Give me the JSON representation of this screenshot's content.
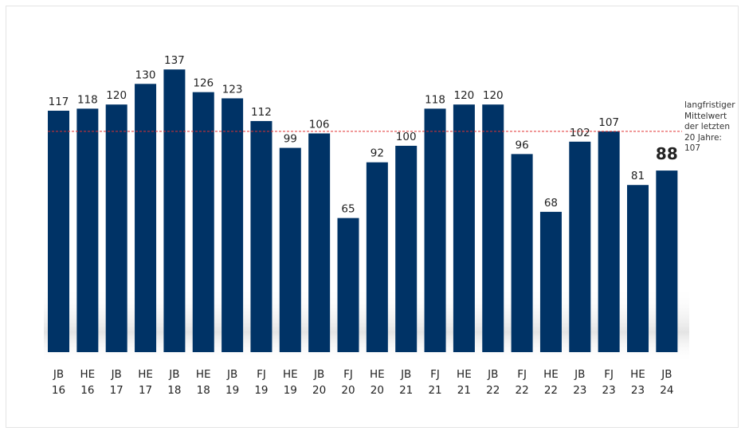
{
  "chart_data": {
    "type": "bar",
    "categories": [
      [
        "JB",
        "16"
      ],
      [
        "HE",
        "16"
      ],
      [
        "JB",
        "17"
      ],
      [
        "HE",
        "17"
      ],
      [
        "JB",
        "18"
      ],
      [
        "HE",
        "18"
      ],
      [
        "JB",
        "19"
      ],
      [
        "FJ",
        "19"
      ],
      [
        "HE",
        "19"
      ],
      [
        "JB",
        "20"
      ],
      [
        "FJ",
        "20"
      ],
      [
        "HE",
        "20"
      ],
      [
        "JB",
        "21"
      ],
      [
        "FJ",
        "21"
      ],
      [
        "HE",
        "21"
      ],
      [
        "JB",
        "22"
      ],
      [
        "FJ",
        "22"
      ],
      [
        "HE",
        "22"
      ],
      [
        "JB",
        "23"
      ],
      [
        "FJ",
        "23"
      ],
      [
        "HE",
        "23"
      ],
      [
        "JB",
        "24"
      ]
    ],
    "values": [
      117,
      118,
      120,
      130,
      137,
      126,
      123,
      112,
      99,
      106,
      65,
      92,
      100,
      118,
      120,
      120,
      96,
      68,
      102,
      107,
      81,
      88
    ],
    "highlight_last": true,
    "bar_color": "#003366",
    "ylim": [
      0,
      140
    ],
    "reference_line": {
      "value": 107,
      "color": "#e03030",
      "style": "dashed",
      "label_lines": [
        "langfristiger",
        "Mittelwert",
        "der letzten",
        "20 Jahre:",
        "107"
      ]
    },
    "grid": false,
    "legend": "none"
  }
}
